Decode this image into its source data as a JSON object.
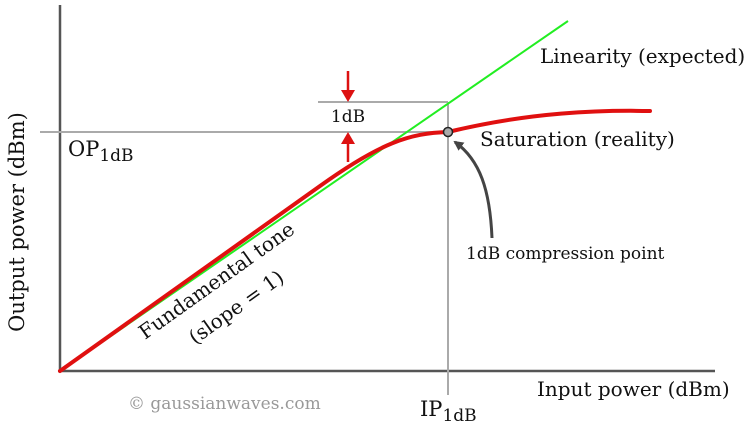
{
  "axes": {
    "y_label": "Output power (dBm)",
    "x_label": "Input power (dBm)"
  },
  "labels": {
    "op_main": "OP",
    "op_sub": "1dB",
    "ip_main": "IP",
    "ip_sub": "1dB",
    "delta": "1dB",
    "linearity": "Linearity (expected)",
    "saturation": "Saturation (reality)",
    "compression_point": "1dB compression point",
    "fundamental_line1": "Fundamental tone",
    "fundamental_line2": "(slope = 1)",
    "watermark": "© gaussianwaves.com"
  },
  "colors": {
    "axis": "#555555",
    "guide": "#aaaaaa",
    "linear": "#22ee22",
    "actual": "#e01010",
    "marker_arrow": "#dd1111",
    "callout_arrow": "#444444",
    "text": "#111111",
    "watermark": "#999999"
  },
  "icons": {
    "compression_marker": "circle-marker",
    "callout": "curved-arrow"
  }
}
